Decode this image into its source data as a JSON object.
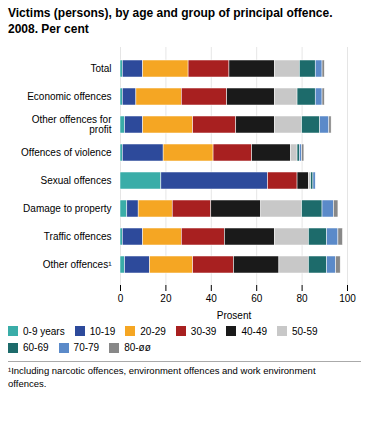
{
  "chart_data": {
    "type": "bar",
    "orientation": "horizontal",
    "stacked": true,
    "title": "Victims (persons), by age and group of principal offence.\n2008. Per cent",
    "xlabel": "Prosent",
    "annotations": [
      "¹Including narcotic offences, environment offences and work environment\noffences."
    ],
    "categories": [
      "Total",
      "Economic offences",
      "Other offences for\nprofit",
      "Offences of violence",
      "Sexual offences",
      "Damage to property",
      "Traffic offences",
      "Other offences¹"
    ],
    "series": [
      {
        "name": "0-9 years",
        "color": "#3aada8",
        "values": [
          1,
          1,
          2,
          1,
          18,
          3,
          1,
          2
        ]
      },
      {
        "name": "10-19",
        "color": "#2d4a9b",
        "values": [
          9,
          6,
          8,
          18,
          47,
          5,
          9,
          11
        ]
      },
      {
        "name": "20-29",
        "color": "#f5a623",
        "values": [
          20,
          20,
          22,
          22,
          0,
          15,
          17,
          19
        ]
      },
      {
        "name": "30-39",
        "color": "#a82020",
        "values": [
          18,
          20,
          19,
          17,
          13,
          17,
          19,
          18
        ]
      },
      {
        "name": "40-49",
        "color": "#1a1a1a",
        "values": [
          20,
          21,
          17,
          17,
          5,
          22,
          22,
          20
        ]
      },
      {
        "name": "50-59",
        "color": "#c8c8c8",
        "values": [
          11,
          10,
          12,
          3,
          1,
          18,
          15,
          13
        ]
      },
      {
        "name": "60-69",
        "color": "#1d6b6b",
        "values": [
          7,
          8,
          8,
          1,
          1,
          9,
          8,
          8
        ]
      },
      {
        "name": "70-79",
        "color": "#5b8ac9",
        "values": [
          3,
          3,
          4,
          1,
          1,
          5,
          5,
          4
        ]
      },
      {
        "name": "80-øø",
        "color": "#888888",
        "values": [
          1,
          1,
          1,
          1,
          0,
          2,
          2,
          2
        ]
      }
    ],
    "xlim": [
      0,
      100
    ],
    "xticks": [
      0,
      20,
      40,
      60,
      80,
      100
    ],
    "grid": true,
    "legend": "bottom"
  }
}
